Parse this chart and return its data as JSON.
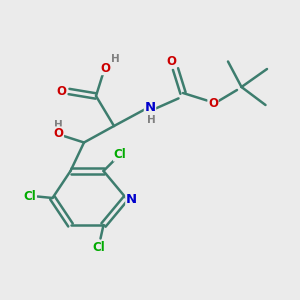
{
  "bg_color": "#ebebeb",
  "bond_color": "#3d7d6e",
  "bond_width": 1.8,
  "atom_colors": {
    "C": "#3d7d6e",
    "H": "#808080",
    "O": "#cc0000",
    "N": "#0000cc",
    "Cl": "#00aa00"
  },
  "font_size": 8.5,
  "figsize": [
    3.0,
    3.0
  ],
  "dpi": 100,
  "xlim": [
    0,
    10
  ],
  "ylim": [
    0,
    10
  ]
}
